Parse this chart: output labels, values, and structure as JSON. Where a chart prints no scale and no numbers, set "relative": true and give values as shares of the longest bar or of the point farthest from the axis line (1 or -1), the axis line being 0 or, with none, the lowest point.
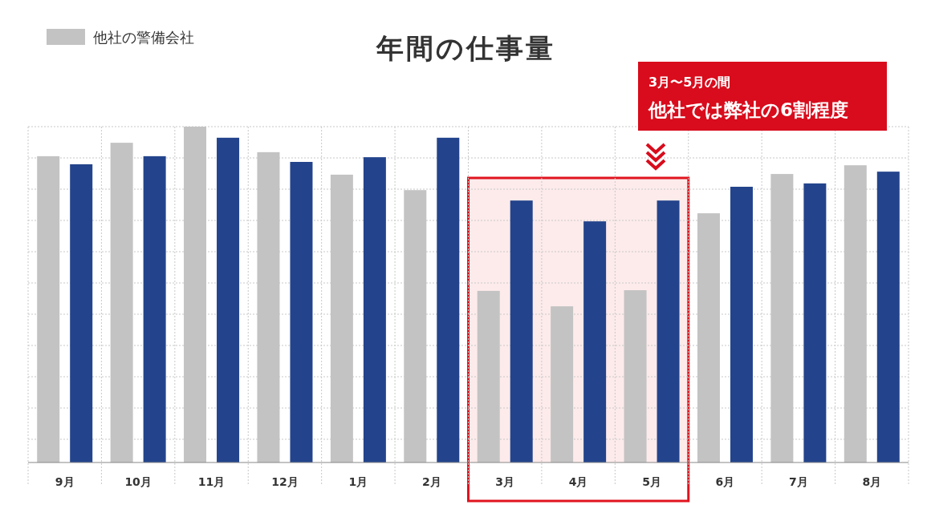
{
  "chart_data": {
    "type": "bar",
    "title": "年間の仕事量",
    "relative": true,
    "categories": [
      "9月",
      "10月",
      "11月",
      "12月",
      "1月",
      "2月",
      "3月",
      "4月",
      "5月",
      "6月",
      "7月",
      "8月"
    ],
    "series": [
      {
        "name": "他社の警備会社",
        "color": "#c3c3c3",
        "values": [
          0.912,
          0.952,
          1.0,
          0.924,
          0.857,
          0.811,
          0.511,
          0.465,
          0.513,
          0.742,
          0.859,
          0.885
        ]
      },
      {
        "color": "#23448c",
        "values": [
          0.888,
          0.912,
          0.967,
          0.895,
          0.909,
          0.967,
          0.78,
          0.718,
          0.78,
          0.821,
          0.831,
          0.866
        ]
      }
    ],
    "bands": [
      {
        "axis": "x",
        "from": "3月",
        "to": "5月",
        "color": "#fdebeb"
      }
    ],
    "annotations": [
      "3月〜5月の間",
      "他社では弊社の6割程度"
    ],
    "grid": true,
    "legend": "top left"
  }
}
